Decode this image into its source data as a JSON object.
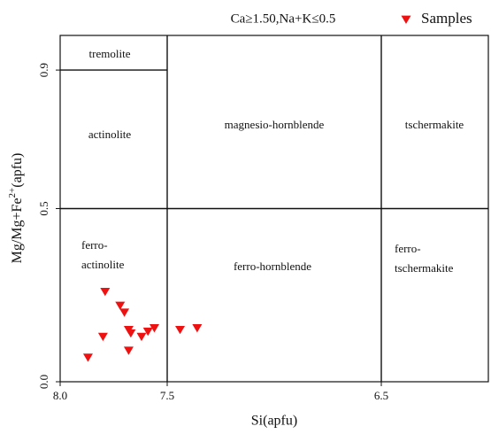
{
  "chart_data": {
    "type": "scatter",
    "title": "Ca≥1.50,Na+K≤0.5",
    "x_label": "Si(apfu)",
    "y_label": [
      "Mg/Mg+Fe",
      "2+",
      "(apfu)"
    ],
    "xlim": [
      8.0,
      6.0
    ],
    "ylim": [
      0.0,
      1.0
    ],
    "xticks": [
      {
        "value": 8.0,
        "label": "8.0"
      },
      7.5,
      6.5
    ],
    "yticks": [
      {
        "value": 0.0,
        "label": "0.0"
      },
      0.5,
      0.9
    ],
    "dividers": [
      {
        "x": [
          8.0,
          7.5
        ],
        "y": [
          0.9,
          0.9
        ]
      },
      {
        "x": [
          8.0,
          6.0
        ],
        "y": [
          0.5,
          0.5
        ]
      },
      {
        "x": [
          7.5,
          7.5
        ],
        "y": [
          0.0,
          1.0
        ]
      },
      {
        "x": [
          6.5,
          6.5
        ],
        "y": [
          0.0,
          1.0
        ]
      }
    ],
    "regions": [
      [
        "tremolite"
      ],
      [
        "actinolite"
      ],
      [
        "magnesio-hornblende"
      ],
      [
        "tschermakite"
      ],
      [
        "ferro-",
        "actinolite"
      ],
      [
        "ferro-hornblende"
      ],
      [
        "ferro-",
        "tschermakite"
      ]
    ],
    "series": [
      {
        "name": "Samples",
        "color": "#ee1111",
        "x": [
          7.79,
          7.72,
          7.7,
          7.8,
          7.87,
          7.68,
          7.67,
          7.62,
          7.59,
          7.56,
          7.68,
          7.44,
          7.36
        ],
        "values": [
          0.26,
          0.22,
          0.2,
          0.13,
          0.07,
          0.15,
          0.14,
          0.13,
          0.145,
          0.155,
          0.09,
          0.15,
          0.155
        ]
      }
    ]
  }
}
